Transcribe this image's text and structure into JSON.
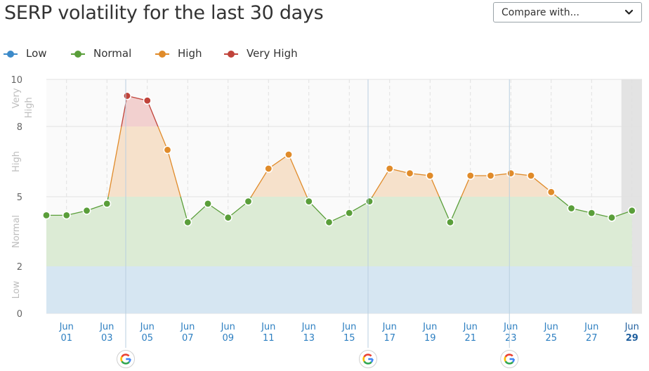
{
  "header": {
    "title": "SERP volatility for the last 30 days",
    "compare": {
      "label": "Compare with...",
      "icon": "chevron-down-icon"
    }
  },
  "legend": [
    {
      "label": "Low",
      "color": "#3c8ac9"
    },
    {
      "label": "Normal",
      "color": "#5a9e3a"
    },
    {
      "label": "High",
      "color": "#e08b2a"
    },
    {
      "label": "Very High",
      "color": "#c0433a"
    }
  ],
  "chart_data": {
    "type": "line",
    "title": "SERP volatility for the last 30 days",
    "ylim": [
      0,
      10
    ],
    "yticks": [
      "0",
      "2",
      "5",
      "8",
      "10"
    ],
    "bands": [
      {
        "label": "Low",
        "from": 0,
        "to": 2,
        "fill": "#d6e6f2",
        "line": "#3c8ac9"
      },
      {
        "label": "Normal",
        "from": 2,
        "to": 5,
        "fill": "#dcebd5",
        "line": "#5a9e3a"
      },
      {
        "label": "High",
        "from": 5,
        "to": 8,
        "fill": "#f6e1cb",
        "line": "#e08b2a"
      },
      {
        "label": "Very High",
        "from": 8,
        "to": 10,
        "fill": "#f2d0cf",
        "line": "#c0433a"
      }
    ],
    "band_labels": [
      {
        "text": "Low",
        "y": 1
      },
      {
        "text": "Normal",
        "y": 3.5
      },
      {
        "text": "High",
        "y": 6.5
      },
      {
        "text": "Very",
        "y": 9.2
      },
      {
        "text": "High",
        "y": 8.8
      }
    ],
    "x_labels": [
      {
        "month": "Jun",
        "day": "01"
      },
      {
        "month": "Jun",
        "day": "03"
      },
      {
        "month": "Jun",
        "day": "05"
      },
      {
        "month": "Jun",
        "day": "07"
      },
      {
        "month": "Jun",
        "day": "09"
      },
      {
        "month": "Jun",
        "day": "11"
      },
      {
        "month": "Jun",
        "day": "13"
      },
      {
        "month": "Jun",
        "day": "15"
      },
      {
        "month": "Jun",
        "day": "17"
      },
      {
        "month": "Jun",
        "day": "19"
      },
      {
        "month": "Jun",
        "day": "21"
      },
      {
        "month": "Jun",
        "day": "23"
      },
      {
        "month": "Jun",
        "day": "25"
      },
      {
        "month": "Jun",
        "day": "27"
      },
      {
        "month": "Jun",
        "day": "29"
      }
    ],
    "series": [
      {
        "days": [
          "2024-05-31",
          "2024-06-01",
          "2024-06-02",
          "2024-06-03",
          "2024-06-04",
          "2024-06-05",
          "2024-06-06",
          "2024-06-07",
          "2024-06-08",
          "2024-06-09",
          "2024-06-10",
          "2024-06-11",
          "2024-06-12",
          "2024-06-13",
          "2024-06-14",
          "2024-06-15",
          "2024-06-16",
          "2024-06-17",
          "2024-06-18",
          "2024-06-19",
          "2024-06-20",
          "2024-06-21",
          "2024-06-22",
          "2024-06-23",
          "2024-06-24",
          "2024-06-25",
          "2024-06-26",
          "2024-06-27",
          "2024-06-28",
          "2024-06-29"
        ],
        "values": [
          4.2,
          4.2,
          4.4,
          4.7,
          9.3,
          9.1,
          7.0,
          3.9,
          4.7,
          4.1,
          4.8,
          6.2,
          6.8,
          4.8,
          3.9,
          4.3,
          4.8,
          6.2,
          6.0,
          5.9,
          3.9,
          5.9,
          5.9,
          6.0,
          5.9,
          5.2,
          4.5,
          4.3,
          4.1,
          4.4
        ]
      }
    ],
    "google_updates": [
      "2024-06-04",
      "2024-06-16",
      "2024-06-23"
    ],
    "highlight_day": "2024-06-29",
    "grid": true
  }
}
